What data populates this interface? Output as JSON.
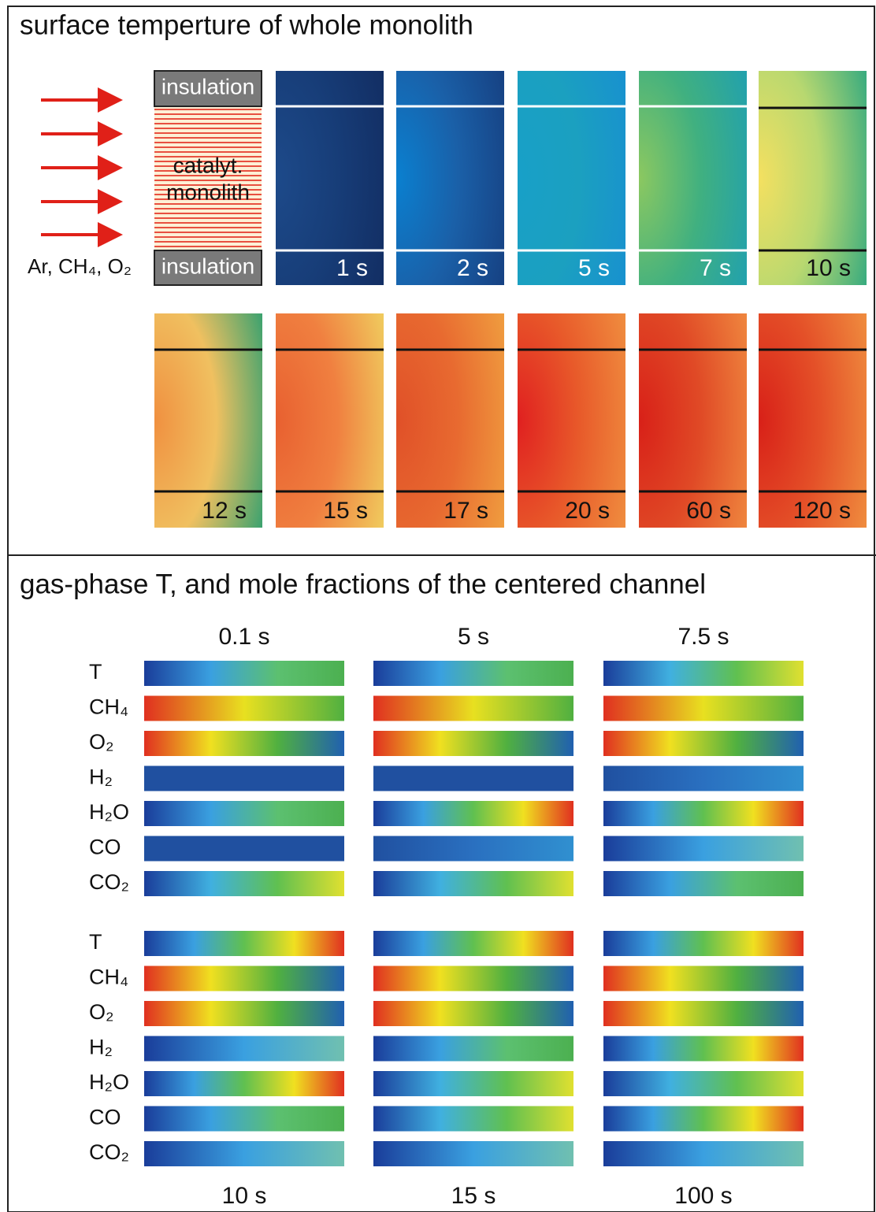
{
  "top_panel": {
    "title": "surface temperture of whole monolith",
    "inflow_label": "Ar, CH₄, O₂",
    "insulation_top": "insulation",
    "insulation_bottom": "insulation",
    "monolith_label": [
      "catalyt.",
      "monolith"
    ],
    "snapshots": [
      "1 s",
      "2 s",
      "5 s",
      "7 s",
      "10 s",
      "12 s",
      "15 s",
      "17 s",
      "20 s",
      "60 s",
      "120 s"
    ]
  },
  "bottom_panel": {
    "title": "gas-phase T, and mole fractions of the centered channel",
    "top_times": [
      "0.1 s",
      "5  s",
      "7.5 s"
    ],
    "bottom_times": [
      "10 s",
      "15 s",
      "100 s"
    ],
    "species_top": [
      "T",
      "CH₄",
      "O₂",
      "H₂",
      "H₂O",
      "CO",
      "CO₂"
    ],
    "species_bottom": [
      "T",
      "CH₄",
      "O₂",
      "H₂",
      "H₂O",
      "CO",
      "CO₂"
    ]
  }
}
